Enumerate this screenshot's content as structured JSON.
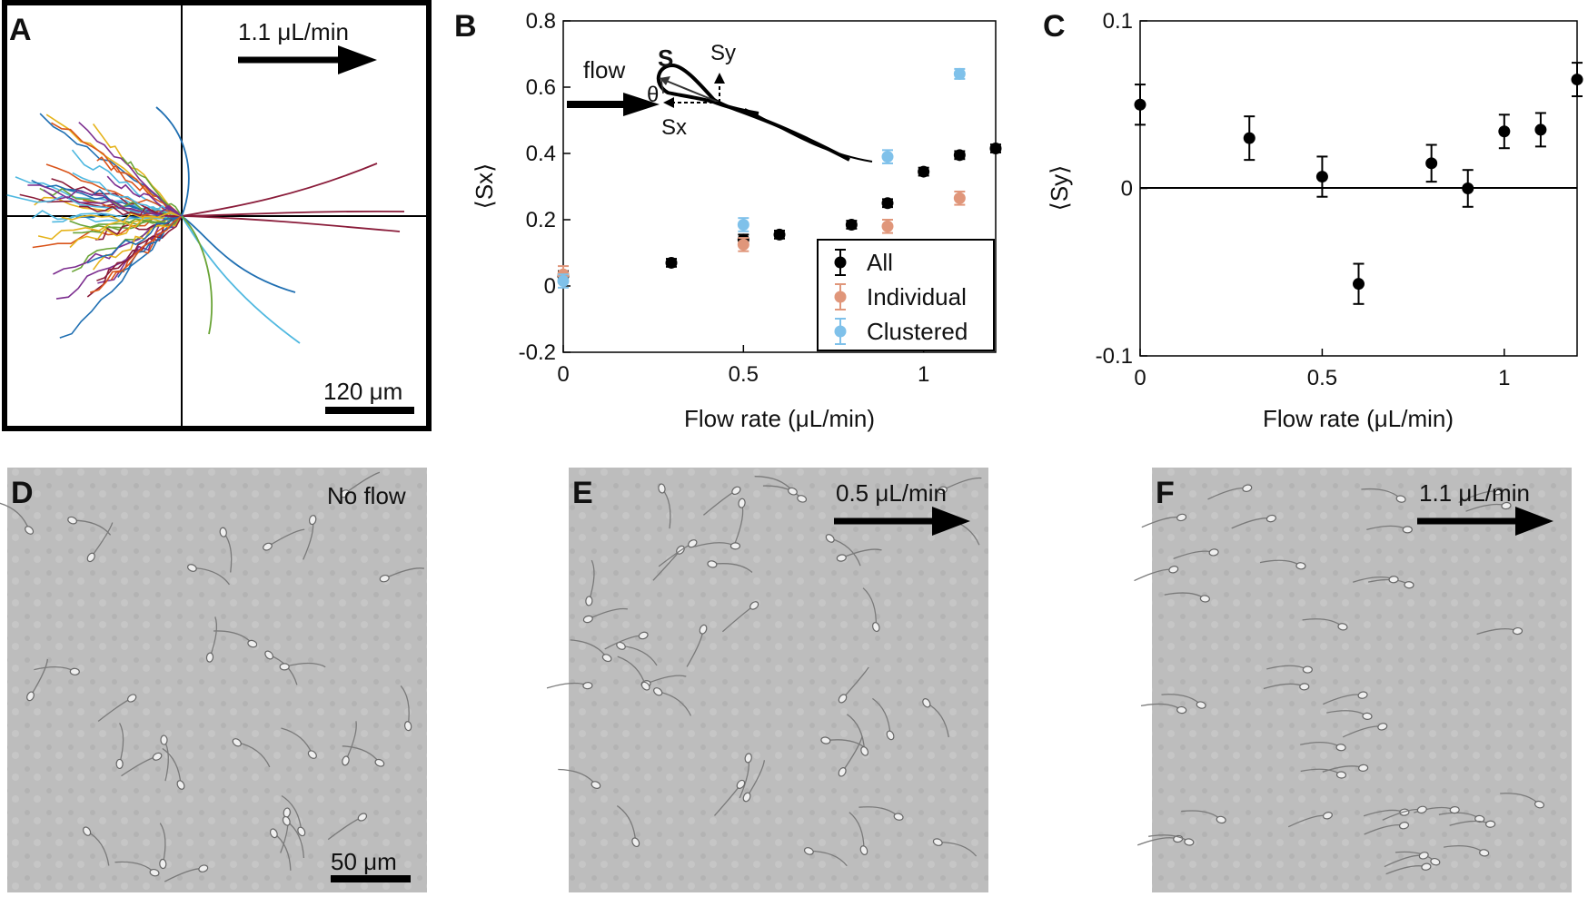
{
  "panels": {
    "A": {
      "letter": "A",
      "flow_label": "1.1 μL/min",
      "scale_label": "120 μm"
    },
    "B": {
      "letter": "B"
    },
    "C": {
      "letter": "C"
    },
    "D": {
      "letter": "D",
      "label": "No flow",
      "scale_label": "50 μm"
    },
    "E": {
      "letter": "E",
      "label": "0.5 μL/min"
    },
    "F": {
      "letter": "F",
      "label": "1.1 μL/min"
    }
  },
  "inset": {
    "flow": "flow",
    "s": "S",
    "sy": "Sy",
    "sx": "Sx",
    "theta": "θ"
  },
  "colors": {
    "all": "#000000",
    "individual": "#e0967a",
    "clustered": "#7fc1ea",
    "trackA": "#8a1c3a"
  },
  "chart_data": [
    {
      "type": "scatter",
      "id": "B",
      "xlabel": "Flow rate (μL/min)",
      "ylabel": "⟨Sx⟩",
      "xlim": [
        0,
        1.2
      ],
      "ylim": [
        -0.2,
        0.8
      ],
      "xticks": [
        "0",
        "0.5",
        "1"
      ],
      "yticks": [
        "-0.2",
        "0",
        "0.2",
        "0.4",
        "0.6",
        "0.8"
      ],
      "legend_position": "bottom-right",
      "series": [
        {
          "name": "All",
          "color": "#000000",
          "x": [
            0,
            0.3,
            0.5,
            0.6,
            0.8,
            0.9,
            1.0,
            1.1,
            1.2
          ],
          "y": [
            0.03,
            0.07,
            0.14,
            0.155,
            0.185,
            0.25,
            0.345,
            0.395,
            0.415
          ],
          "err": [
            0.015,
            0.012,
            0.015,
            0.012,
            0.012,
            0.012,
            0.012,
            0.012,
            0.012
          ]
        },
        {
          "name": "Individual",
          "color": "#e0967a",
          "x": [
            0,
            0.5,
            0.9,
            1.1
          ],
          "y": [
            0.035,
            0.125,
            0.18,
            0.265
          ],
          "err": [
            0.025,
            0.02,
            0.02,
            0.02
          ]
        },
        {
          "name": "Clustered",
          "color": "#7fc1ea",
          "x": [
            0,
            0.5,
            0.9,
            1.1
          ],
          "y": [
            0.015,
            0.185,
            0.39,
            0.64
          ],
          "err": [
            0.02,
            0.02,
            0.02,
            0.015
          ]
        }
      ]
    },
    {
      "type": "scatter",
      "id": "C",
      "xlabel": "Flow rate (μL/min)",
      "ylabel": "⟨Sy⟩",
      "xlim": [
        0,
        1.2
      ],
      "ylim": [
        -0.1,
        0.1
      ],
      "xticks": [
        "0",
        "0.5",
        "1"
      ],
      "yticks": [
        "-0.1",
        "0",
        "0.1"
      ],
      "series": [
        {
          "name": "All",
          "color": "#000000",
          "x": [
            0,
            0.3,
            0.5,
            0.6,
            0.8,
            0.9,
            1.0,
            1.1,
            1.2
          ],
          "y": [
            0.05,
            0.03,
            0.007,
            -0.057,
            0.015,
            0.0,
            0.034,
            0.035,
            0.065
          ],
          "err": [
            0.012,
            0.013,
            0.012,
            0.012,
            0.011,
            0.011,
            0.01,
            0.01,
            0.01
          ]
        }
      ]
    }
  ]
}
